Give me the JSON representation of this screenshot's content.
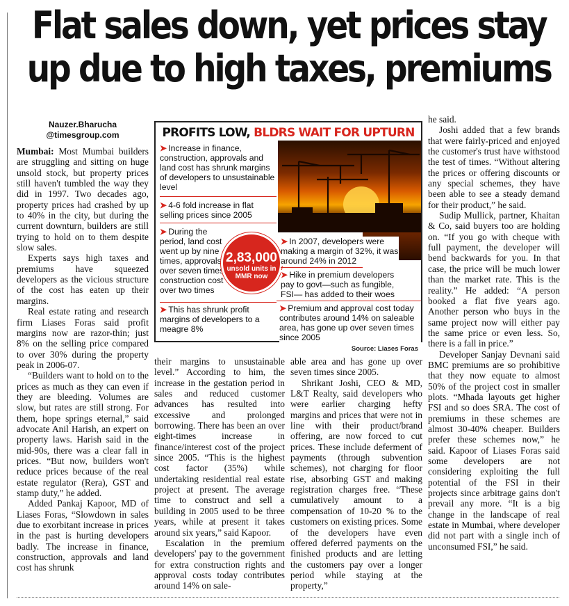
{
  "headline": "Flat sales down, yet prices stay up due to high taxes, premiums",
  "byline": {
    "name": "Nauzer.Bharucha",
    "handle": "@timesgroup.com"
  },
  "graphic": {
    "title_part1": "PROFITS LOW, ",
    "title_part2": "BLDRS WAIT FOR UPTURN",
    "points": [
      "Increase in finance, construction, approvals and land cost has shrunk margins of developers to unsustainable level",
      "4-6 fold increase in flat selling prices since 2005",
      "During the period, land cost went up by nine times, approvals over seven times, construction cost over two times",
      "This has shrunk profit margins of developers to a meagre 8%",
      "In 2007, developers were making a margin of 32%, it was around 24% in 2012",
      "Hike in premium developers pay to govt—such as fungible, FSI— has added to their woes",
      "Premium and approval cost today contributes around 14% on saleable area, has gone up over seven times since 2005"
    ],
    "badge_number": "2,83,000",
    "badge_label": "unsold units in MMR now",
    "source": "Source: Liases Foras",
    "colors": {
      "accent": "#d7261e"
    }
  },
  "article": {
    "col1": [
      {
        "dateline": "Mumbai:",
        "text": " Most Mumbai builders are struggling and sitting on huge unsold stock, but property prices still haven't tumbled the way they did in 1997. Two decades ago, property prices had crashed by up to 40% in the city, but during the current downturn, builders are still trying to hold on to them despite slow sales."
      },
      {
        "text": "Experts says high taxes and premiums have squeezed developers as the vicious structure of the cost has eaten up their margins."
      },
      {
        "text": "Real estate rating and research firm Liases Foras said profit margins now are razor-thin; just 8% on the selling price compared to over 30% during the property peak in 2006-07."
      },
      {
        "text": "“Builders want to hold on to the prices as much as they can even if they are bleeding. Volumes are slow, but rates are still strong. For them, hope springs eternal,” said advocate Anil Harish, an expert on property laws. Harish said in the mid-90s, there was a clear fall in prices. “But now, builders won't reduce prices because of the real estate regulator (Rera), GST and stamp duty,” he added."
      },
      {
        "text": "Added Pankaj Kapoor, MD of Liases Foras, “Slowdown in sales due to exorbitant increase in prices in the past is hurting developers badly. The increase in finance, construction, approvals and land cost has shrunk"
      }
    ],
    "col2": [
      {
        "noindent": true,
        "text": "their margins to unsustainable level.” According to him, the increase in the gestation period in sales and reduced customer advances has resulted into excessive and prolonged borrowing. There has been an over eight-times increase in finance/interest cost of the project since 2005. “This is the highest cost factor (35%) while undertaking residential real estate project at present. The average time to construct and sell a building in 2005 used to be three years, while at present it takes around six years,” said Kapoor."
      },
      {
        "text": "Escalation in the premium developers' pay to the government for extra construction rights and approval costs today contributes around 14% on sale-"
      }
    ],
    "col3": [
      {
        "noindent": true,
        "text": "able area and has gone up over seven times since 2005."
      },
      {
        "text": "Shrikant Joshi, CEO & MD, L&T Realty, said developers who were earlier charging hefty margins and prices that were not in line with their product/brand offering, are now forced to cut prices. These include deferment of payments (through subvention schemes), not charging for floor rise, absorbing GST and making registration charges free. “These cumulatively amount to a compensation of 10-20 % to the customers on existing prices. Some of the developers have even offered deferred payments on the finished products and are letting the customers pay over a longer period while staying at the property,”"
      }
    ],
    "col4": [
      {
        "noindent": true,
        "text": "he said."
      },
      {
        "text": "Joshi added that a few brands that were fairly-priced and enjoyed the customer's trust have withstood the test of times. “Without altering the prices or offering discounts or any special schemes, they have been able to see a steady demand for their product,” he said."
      },
      {
        "text": "Sudip Mullick, partner, Khaitan & Co, said buyers too are holding on. “If you go with cheque with full payment, the developer will bend backwards for you. In that case, the price will be much lower than the market rate. This is the reality.” He added: “A person booked a flat five years ago. Another person who buys in the same project now will either pay the same price or even less. So, there is a fall in price.”"
      },
      {
        "text": "Developer Sanjay Devnani said BMC premiums are so prohibitive that they now equate to almost 50% of the project cost in smaller plots. “Mhada layouts get higher FSI and so does SRA. The cost of premiums in these schemes are almost 30-40% cheaper. Builders prefer these schemes now,” he said. Kapoor of Liases Foras said some developers are not considering exploiting the full potential of the FSI in their projects since arbitrage gains don't prevail any more. “It is a big change in the landscape of real estate in Mumbai, where developer did not part with a single inch of unconsumed FSI,” he said."
      }
    ]
  }
}
